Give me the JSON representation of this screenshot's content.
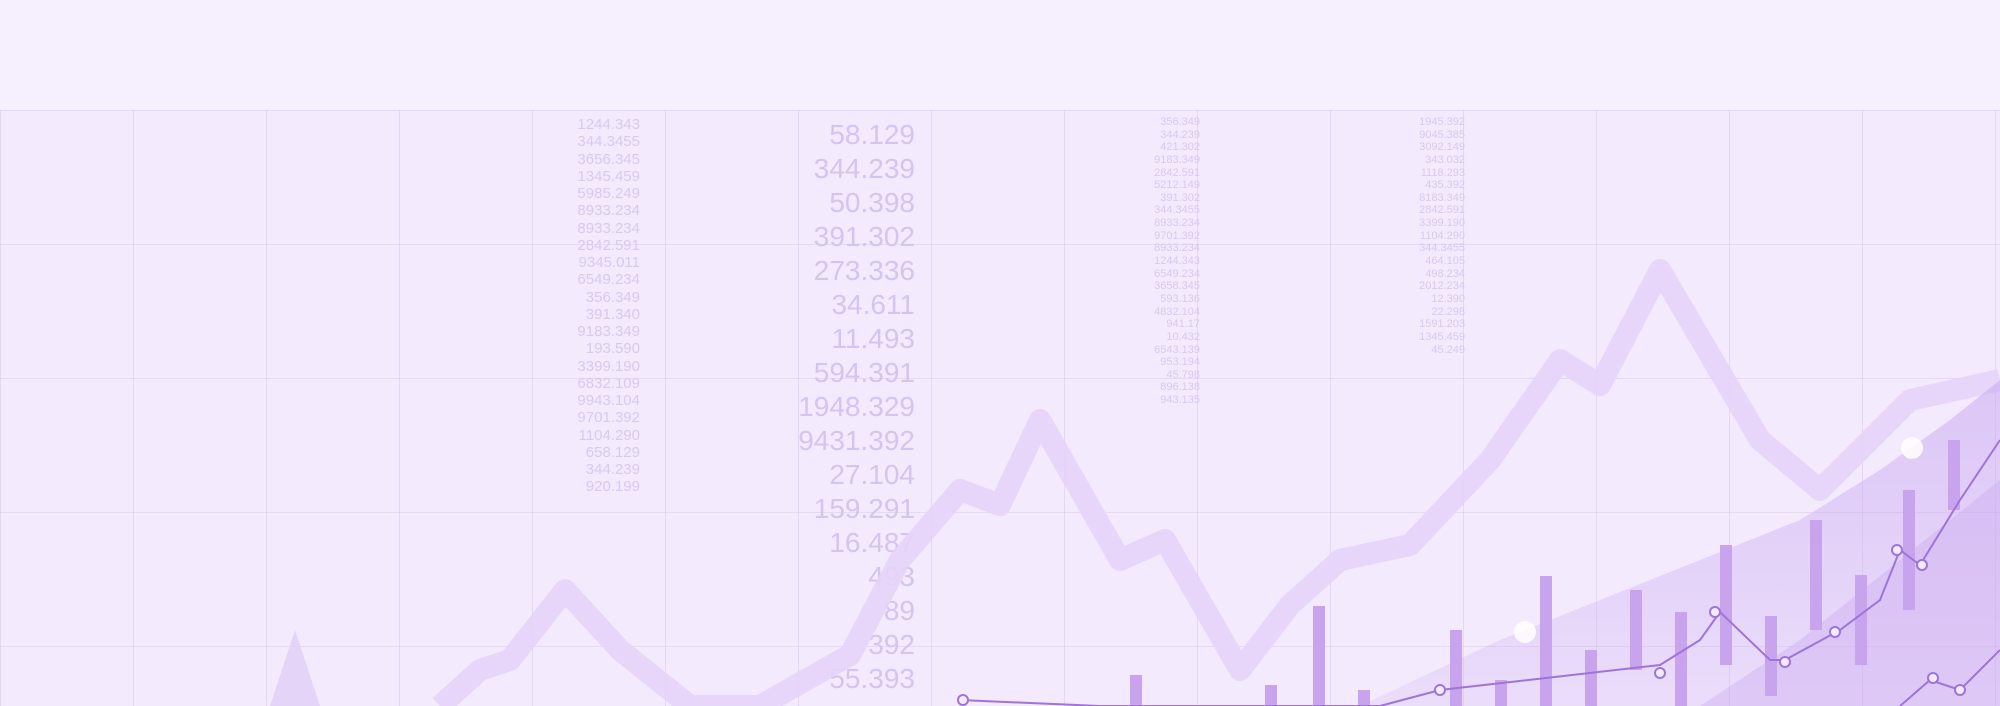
{
  "background": {
    "primary_color": "#f3eafd",
    "accent_color": "#c9a8f0",
    "numbers": [
      "58.129",
      "344.239",
      "50.398",
      "391.302",
      "273.336",
      "34.611",
      "11.493",
      "594.391",
      "1948.329",
      "9431.392",
      "27.104",
      "159.291",
      "16.487",
      "493",
      "89",
      "392",
      "55.393"
    ],
    "col_a": [
      "1244.343",
      "344.3455",
      "3656.345",
      "1345.459",
      "5985.249",
      "8933.234",
      "8933.234",
      "2842.591",
      "9345.011",
      "6549.234",
      "356.349",
      "391.340",
      "9183.349",
      "193.590",
      "3399.190",
      "6832.109",
      "9943.104",
      "9701.392",
      "1104.290",
      "658.129",
      "344.239",
      "920.199"
    ],
    "col_b": [
      "356.349",
      "344.239",
      "421.302",
      "9183.349",
      "2842.591",
      "5212.149",
      "391.302",
      "344.3455",
      "8933.234",
      "9701.392",
      "8933.234",
      "1244.343",
      "6549.234",
      "3658.345",
      "593.136",
      "4832.104",
      "941.17",
      "10.432",
      "6543.139",
      "953.194",
      "45.798",
      "896.138",
      "943.135"
    ],
    "col_c": [
      "1945.392",
      "9045.385",
      "3092.149",
      "343.032",
      "1118.293",
      "435.392",
      "8183.349",
      "2842.591",
      "3399.190",
      "1104.290",
      "344.3455",
      "464.105",
      "498.234",
      "2012.234",
      "12.390",
      "22.298",
      "1591.203",
      "1345.459",
      "45.249"
    ]
  }
}
